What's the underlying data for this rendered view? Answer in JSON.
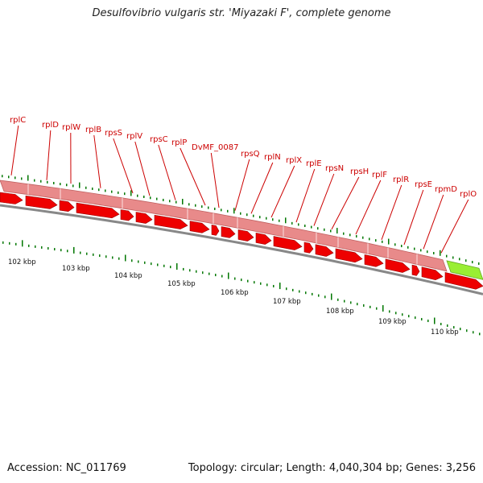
{
  "title": "Desulfovibrio vulgaris str. 'Miyazaki F', complete genome",
  "footer": {
    "accession": "Accession: NC_011769",
    "summary": "Topology: circular; Length: 4,040,304 bp; Genes: 3,256"
  },
  "colors": {
    "gene_label": "#cc0000",
    "cds_arrow": "#ee0000",
    "feature_band": "#e88a8a",
    "highlight_band": "#99ee33",
    "backbone": "#888888",
    "tick": "#007700"
  },
  "gene_labels": [
    "rplC",
    "rplD",
    "rplW",
    "rplB",
    "rpsS",
    "rplV",
    "rpsC",
    "rplP",
    "DvMF_0087",
    "rpsQ",
    "rplN",
    "rplX",
    "rplE",
    "rpsN",
    "rpsH",
    "rplF",
    "rplR",
    "rpsE",
    "rpmD",
    "rplO"
  ],
  "kbp_labels": [
    "102 kbp",
    "103 kbp",
    "104 kbp",
    "105 kbp",
    "106 kbp",
    "107 kbp",
    "108 kbp",
    "109 kbp",
    "110 kbp"
  ]
}
